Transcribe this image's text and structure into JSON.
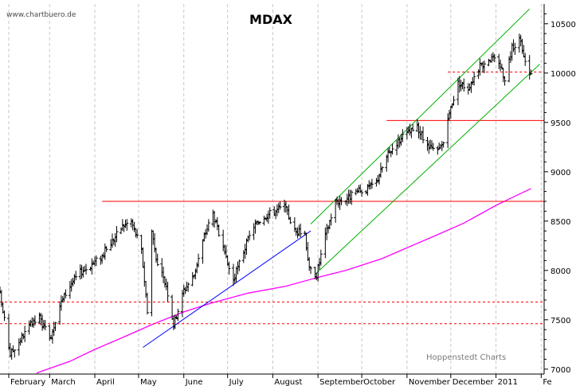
{
  "watermark": "www.chartbuero.de",
  "credit": "Hoppenstedt Charts",
  "colors": {
    "price": "#000000",
    "resistance": "#ff0000",
    "channel": "#00b000",
    "trendline": "#0000ff",
    "moving_average": "#ff00ff",
    "grid": "#c8c8c8"
  },
  "chart_data": {
    "type": "ohlc",
    "title": "MDAX",
    "ylim": [
      6950,
      10700
    ],
    "y_ticks": [
      7000,
      7500,
      8000,
      8500,
      9000,
      9500,
      10000,
      10500
    ],
    "y_tick_labels": [
      "7000",
      "7500",
      "8000",
      "8500",
      "9000",
      "9500",
      "10000",
      "10500"
    ],
    "y_axis_side": "right",
    "grid": "vertical dashed at month starts",
    "x_domain": [
      "2010-01-26",
      "2011-02-03"
    ],
    "x_tick_labels": [
      {
        "date": "2010-02-01",
        "label": "February"
      },
      {
        "date": "2010-03-01",
        "label": "March"
      },
      {
        "date": "2010-04-01",
        "label": "April"
      },
      {
        "date": "2010-05-01",
        "label": "May"
      },
      {
        "date": "2010-06-01",
        "label": "June"
      },
      {
        "date": "2010-07-01",
        "label": "July"
      },
      {
        "date": "2010-08-01",
        "label": "August"
      },
      {
        "date": "2010-09-01",
        "label": "September"
      },
      {
        "date": "2010-10-01",
        "label": "October"
      },
      {
        "date": "2010-11-01",
        "label": "November"
      },
      {
        "date": "2010-12-01",
        "label": "December"
      },
      {
        "date": "2011-01-01",
        "label": "2011"
      },
      {
        "date": "2011-02-01",
        "label": "Fe"
      }
    ],
    "price_path": [
      [
        "2010-01-26",
        7750
      ],
      [
        "2010-02-02",
        7150
      ],
      [
        "2010-02-08",
        7280
      ],
      [
        "2010-02-15",
        7430
      ],
      [
        "2010-02-22",
        7520
      ],
      [
        "2010-03-01",
        7300
      ],
      [
        "2010-03-08",
        7650
      ],
      [
        "2010-03-15",
        7850
      ],
      [
        "2010-03-22",
        7980
      ],
      [
        "2010-03-29",
        8050
      ],
      [
        "2010-04-06",
        8150
      ],
      [
        "2010-04-13",
        8300
      ],
      [
        "2010-04-20",
        8450
      ],
      [
        "2010-04-26",
        8500
      ],
      [
        "2010-05-03",
        8200
      ],
      [
        "2010-05-07",
        7600
      ],
      [
        "2010-05-10",
        8400
      ],
      [
        "2010-05-14",
        8050
      ],
      [
        "2010-05-20",
        7850
      ],
      [
        "2010-05-25",
        7450
      ],
      [
        "2010-06-01",
        7800
      ],
      [
        "2010-06-08",
        7950
      ],
      [
        "2010-06-15",
        8350
      ],
      [
        "2010-06-21",
        8580
      ],
      [
        "2010-06-29",
        8150
      ],
      [
        "2010-07-05",
        7900
      ],
      [
        "2010-07-12",
        8200
      ],
      [
        "2010-07-19",
        8450
      ],
      [
        "2010-07-26",
        8550
      ],
      [
        "2010-08-02",
        8600
      ],
      [
        "2010-08-09",
        8650
      ],
      [
        "2010-08-16",
        8400
      ],
      [
        "2010-08-23",
        8380
      ],
      [
        "2010-08-26",
        8010
      ],
      [
        "2010-08-31",
        7960
      ],
      [
        "2010-09-06",
        8350
      ],
      [
        "2010-09-13",
        8700
      ],
      [
        "2010-09-20",
        8720
      ],
      [
        "2010-09-27",
        8790
      ],
      [
        "2010-10-04",
        8820
      ],
      [
        "2010-10-11",
        8900
      ],
      [
        "2010-10-18",
        9150
      ],
      [
        "2010-10-25",
        9300
      ],
      [
        "2010-11-01",
        9380
      ],
      [
        "2010-11-08",
        9450
      ],
      [
        "2010-11-15",
        9250
      ],
      [
        "2010-11-22",
        9200
      ],
      [
        "2010-11-26",
        9300
      ],
      [
        "2010-12-01",
        9650
      ],
      [
        "2010-12-06",
        9900
      ],
      [
        "2010-12-13",
        9850
      ],
      [
        "2010-12-20",
        10050
      ],
      [
        "2010-12-27",
        10150
      ],
      [
        "2011-01-03",
        10120
      ],
      [
        "2011-01-07",
        9950
      ],
      [
        "2011-01-12",
        10250
      ],
      [
        "2011-01-17",
        10350
      ],
      [
        "2011-01-21",
        10100
      ],
      [
        "2011-01-25",
        9980
      ]
    ],
    "horizontal_lines": [
      {
        "value": 8700,
        "from": "2010-04-06",
        "to": "2011-02-03",
        "style": "solid"
      },
      {
        "value": 9520,
        "from": "2010-10-18",
        "to": "2011-02-03",
        "style": "solid"
      },
      {
        "value": 10010,
        "from": "2010-11-29",
        "to": "2011-02-03",
        "style": "dashed"
      },
      {
        "value": 7680,
        "from": "2010-01-26",
        "to": "2011-02-03",
        "style": "dashed"
      },
      {
        "value": 7460,
        "from": "2010-01-26",
        "to": "2011-02-03",
        "style": "dashed"
      }
    ],
    "trendline": {
      "from": [
        "2010-05-04",
        7220
      ],
      "to": [
        "2010-08-27",
        8400
      ]
    },
    "channel": {
      "upper": {
        "from": [
          "2010-08-27",
          8470
        ],
        "to": [
          "2011-01-24",
          10650
        ]
      },
      "lower": {
        "from": [
          "2010-08-30",
          7960
        ],
        "to": [
          "2011-01-31",
          10090
        ]
      }
    },
    "moving_average": [
      [
        "2010-02-20",
        6960
      ],
      [
        "2010-03-15",
        7080
      ],
      [
        "2010-04-01",
        7200
      ],
      [
        "2010-04-20",
        7320
      ],
      [
        "2010-05-10",
        7450
      ],
      [
        "2010-06-01",
        7580
      ],
      [
        "2010-06-20",
        7670
      ],
      [
        "2010-07-15",
        7770
      ],
      [
        "2010-08-10",
        7840
      ],
      [
        "2010-09-01",
        7930
      ],
      [
        "2010-09-20",
        8000
      ],
      [
        "2010-10-15",
        8120
      ],
      [
        "2010-11-01",
        8230
      ],
      [
        "2010-11-20",
        8350
      ],
      [
        "2010-12-10",
        8480
      ],
      [
        "2011-01-01",
        8660
      ],
      [
        "2011-01-25",
        8830
      ]
    ]
  }
}
